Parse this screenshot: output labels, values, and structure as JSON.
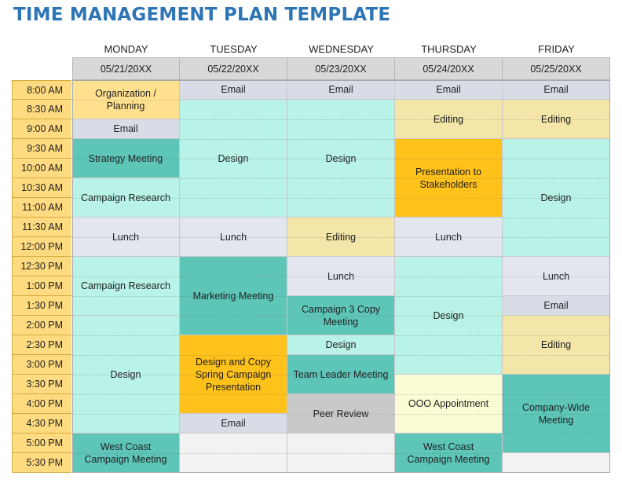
{
  "title": "TIME MANAGEMENT PLAN TEMPLATE",
  "days": [
    {
      "name": "MONDAY",
      "date": "05/21/20XX"
    },
    {
      "name": "TUESDAY",
      "date": "05/22/20XX"
    },
    {
      "name": "WEDNESDAY",
      "date": "05/23/20XX"
    },
    {
      "name": "THURSDAY",
      "date": "05/24/20XX"
    },
    {
      "name": "FRIDAY",
      "date": "05/25/20XX"
    }
  ],
  "times": [
    "8:00 AM",
    "8:30 AM",
    "9:00 AM",
    "9:30 AM",
    "10:00 AM",
    "10:30 AM",
    "11:00 AM",
    "11:30 AM",
    "12:00 PM",
    "12:30 PM",
    "1:00 PM",
    "1:30 PM",
    "2:00 PM",
    "2:30 PM",
    "3:00 PM",
    "3:30 PM",
    "4:00 PM",
    "4:30 PM",
    "5:00 PM",
    "5:30 PM"
  ],
  "colors": {
    "organization": "#ffe08f",
    "email": "#d7dce7",
    "strategy": "#5ec6b9",
    "research": "#b9f2e6",
    "lunch": "#e3e6ef",
    "design": "#b9f2e6",
    "westcoast": "#5ec6b9",
    "marketing": "#5ec6b9",
    "presentation": "#ffc21b",
    "editing": "#f3e6a8",
    "campaign3": "#5ec6b9",
    "teamleader": "#5ec6b9",
    "peer": "#c9c9c9",
    "ooo": "#fbfbd4",
    "companywide": "#5ec6b9",
    "empty": "#f2f2f2"
  },
  "schedule": [
    [
      {
        "label": "Organization / Planning",
        "slots": 2,
        "color": "organization"
      },
      {
        "label": "Email",
        "slots": 1,
        "color": "email"
      },
      {
        "label": "Strategy Meeting",
        "slots": 2,
        "color": "strategy"
      },
      {
        "label": "Campaign Research",
        "slots": 2,
        "color": "research"
      },
      {
        "label": "Lunch",
        "slots": 2,
        "color": "lunch"
      },
      {
        "label": "Campaign Research",
        "slots": 3,
        "color": "research"
      },
      {
        "label": "Design",
        "slots": 6,
        "color": "design"
      },
      {
        "label": "West Coast Campaign  Meeting",
        "slots": 2,
        "color": "westcoast"
      }
    ],
    [
      {
        "label": "Email",
        "slots": 1,
        "color": "email"
      },
      {
        "label": "Design",
        "slots": 6,
        "color": "design"
      },
      {
        "label": "Lunch",
        "slots": 2,
        "color": "lunch"
      },
      {
        "label": "Marketing Meeting",
        "slots": 4,
        "color": "marketing"
      },
      {
        "label": "Design and Copy Spring Campaign Presentation",
        "slots": 4,
        "color": "presentation"
      },
      {
        "label": "Email",
        "slots": 1,
        "color": "email"
      },
      {
        "label": "",
        "slots": 2,
        "color": "empty"
      }
    ],
    [
      {
        "label": "Email",
        "slots": 1,
        "color": "email"
      },
      {
        "label": "Design",
        "slots": 6,
        "color": "design"
      },
      {
        "label": "Editing",
        "slots": 2,
        "color": "editing"
      },
      {
        "label": "Lunch",
        "slots": 2,
        "color": "lunch"
      },
      {
        "label": "Campaign 3 Copy Meeting",
        "slots": 2,
        "color": "campaign3"
      },
      {
        "label": "Design",
        "slots": 1,
        "color": "design"
      },
      {
        "label": "Team Leader Meeting",
        "slots": 2,
        "color": "teamleader"
      },
      {
        "label": "Peer Review",
        "slots": 2,
        "color": "peer"
      },
      {
        "label": "",
        "slots": 2,
        "color": "empty"
      }
    ],
    [
      {
        "label": "Email",
        "slots": 1,
        "color": "email"
      },
      {
        "label": "Editing",
        "slots": 2,
        "color": "editing"
      },
      {
        "label": "Presentation to Stakeholders",
        "slots": 4,
        "color": "presentation"
      },
      {
        "label": "Lunch",
        "slots": 2,
        "color": "lunch"
      },
      {
        "label": "Design",
        "slots": 6,
        "color": "design"
      },
      {
        "label": "OOO Appointment",
        "slots": 3,
        "color": "ooo"
      },
      {
        "label": "West Coast Campaign  Meeting",
        "slots": 2,
        "color": "westcoast"
      }
    ],
    [
      {
        "label": "Email",
        "slots": 1,
        "color": "email"
      },
      {
        "label": "Editing",
        "slots": 2,
        "color": "editing"
      },
      {
        "label": "Design",
        "slots": 6,
        "color": "research"
      },
      {
        "label": "Lunch",
        "slots": 2,
        "color": "lunch"
      },
      {
        "label": "Email",
        "slots": 1,
        "color": "email"
      },
      {
        "label": "Editing",
        "slots": 3,
        "color": "editing"
      },
      {
        "label": "Company-Wide Meeting",
        "slots": 4,
        "color": "companywide"
      },
      {
        "label": "",
        "slots": 1,
        "color": "empty"
      }
    ]
  ]
}
